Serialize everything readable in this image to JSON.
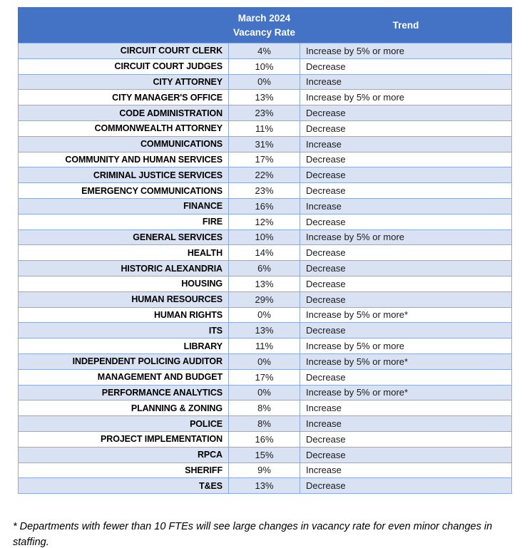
{
  "colors": {
    "header_bg": "#4472C4",
    "header_text": "#FFFFFF",
    "alt_row_bg": "#D9E2F3",
    "row_bg": "#FFFFFF",
    "border": "#8EAADB"
  },
  "table": {
    "header": {
      "department": "",
      "vacancy_rate": "March 2024\nVacancy Rate",
      "trend": "Trend"
    },
    "rows": [
      {
        "department": "CIRCUIT COURT CLERK",
        "rate": "4%",
        "trend": "Increase by 5% or more"
      },
      {
        "department": "CIRCUIT COURT JUDGES",
        "rate": "10%",
        "trend": "Decrease"
      },
      {
        "department": "CITY ATTORNEY",
        "rate": "0%",
        "trend": "Increase"
      },
      {
        "department": "CITY MANAGER'S OFFICE",
        "rate": "13%",
        "trend": "Increase by 5% or more"
      },
      {
        "department": "CODE ADMINISTRATION",
        "rate": "23%",
        "trend": "Decrease"
      },
      {
        "department": "COMMONWEALTH ATTORNEY",
        "rate": "11%",
        "trend": "Decrease"
      },
      {
        "department": "COMMUNICATIONS",
        "rate": "31%",
        "trend": "Increase"
      },
      {
        "department": "COMMUNITY AND HUMAN SERVICES",
        "rate": "17%",
        "trend": "Decrease"
      },
      {
        "department": "CRIMINAL JUSTICE SERVICES",
        "rate": "22%",
        "trend": "Decrease"
      },
      {
        "department": "EMERGENCY COMMUNICATIONS",
        "rate": "23%",
        "trend": "Decrease"
      },
      {
        "department": "FINANCE",
        "rate": "16%",
        "trend": "Increase"
      },
      {
        "department": "FIRE",
        "rate": "12%",
        "trend": "Decrease"
      },
      {
        "department": "GENERAL SERVICES",
        "rate": "10%",
        "trend": "Increase by 5% or more"
      },
      {
        "department": "HEALTH",
        "rate": "14%",
        "trend": "Decrease"
      },
      {
        "department": "HISTORIC ALEXANDRIA",
        "rate": "6%",
        "trend": "Decrease"
      },
      {
        "department": "HOUSING",
        "rate": "13%",
        "trend": "Decrease"
      },
      {
        "department": "HUMAN RESOURCES",
        "rate": "29%",
        "trend": "Decrease"
      },
      {
        "department": "HUMAN RIGHTS",
        "rate": "0%",
        "trend": "Increase by 5% or more*"
      },
      {
        "department": "ITS",
        "rate": "13%",
        "trend": "Decrease"
      },
      {
        "department": "LIBRARY",
        "rate": "11%",
        "trend": "Increase by 5% or more"
      },
      {
        "department": "INDEPENDENT POLICING AUDITOR",
        "rate": "0%",
        "trend": "Increase by 5% or more*"
      },
      {
        "department": "MANAGEMENT AND BUDGET",
        "rate": "17%",
        "trend": "Decrease"
      },
      {
        "department": "PERFORMANCE ANALYTICS",
        "rate": "0%",
        "trend": "Increase by 5% or more*"
      },
      {
        "department": "PLANNING & ZONING",
        "rate": "8%",
        "trend": "Increase"
      },
      {
        "department": "POLICE",
        "rate": "8%",
        "trend": "Increase"
      },
      {
        "department": "PROJECT IMPLEMENTATION",
        "rate": "16%",
        "trend": "Decrease"
      },
      {
        "department": "RPCA",
        "rate": "15%",
        "trend": "Decrease"
      },
      {
        "department": "SHERIFF",
        "rate": "9%",
        "trend": "Increase"
      },
      {
        "department": "T&ES",
        "rate": "13%",
        "trend": "Decrease"
      }
    ]
  },
  "footnote": "* Departments with fewer than 10 FTEs will see large changes in vacancy rate for even minor changes in staffing."
}
